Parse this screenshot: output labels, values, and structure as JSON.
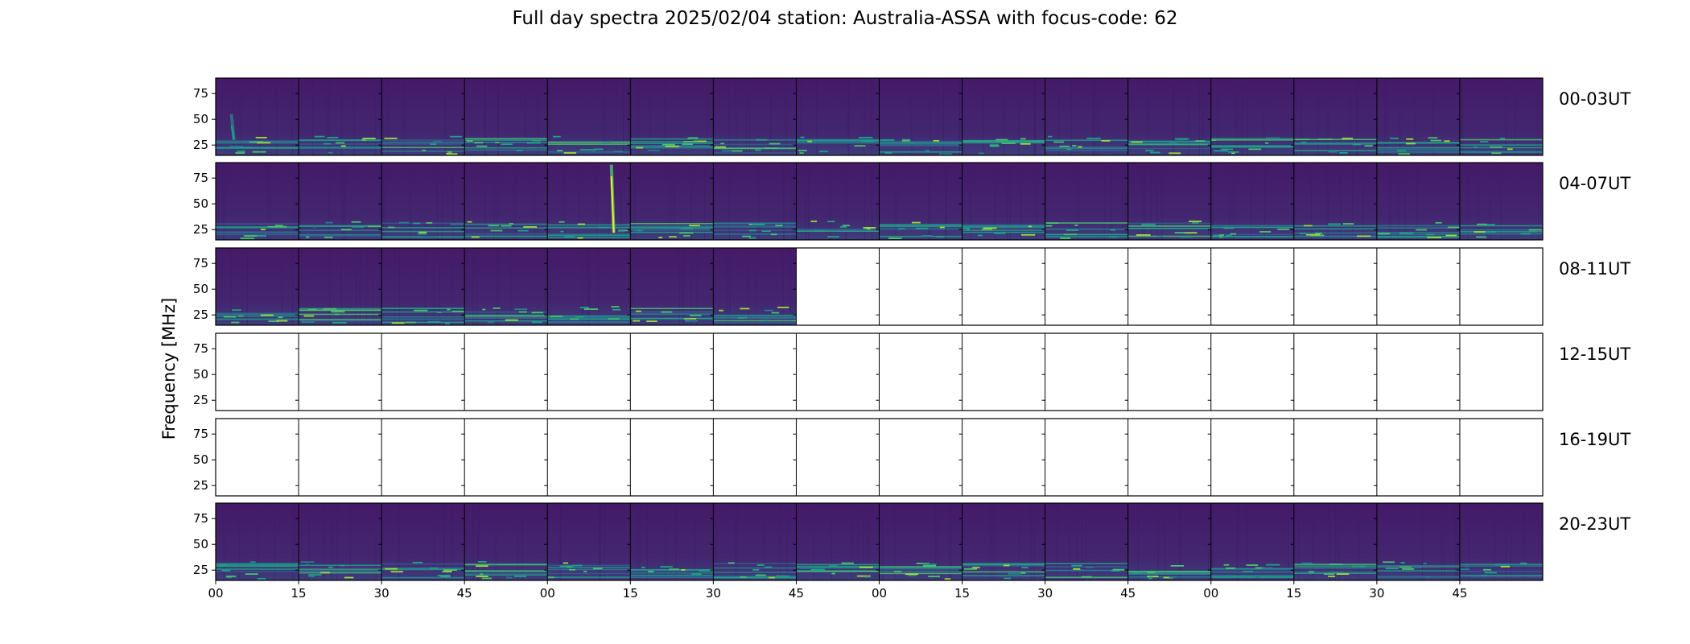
{
  "chart_data": {
    "type": "heatmap",
    "title": "Full day spectra 2025/02/04 station: Australia-ASSA with focus-code: 62",
    "ylabel": "Frequency [MHz]",
    "xlabel": "",
    "ylim": [
      15,
      90
    ],
    "yticks": [
      25,
      50,
      75
    ],
    "xtick_labels": [
      "00",
      "15",
      "30",
      "45",
      "00",
      "15",
      "30",
      "45",
      "00",
      "15",
      "30",
      "45",
      "00",
      "15",
      "30",
      "45"
    ],
    "panels_per_row": 16,
    "colormap": [
      "#440154",
      "#46327e",
      "#365c8d",
      "#277f8e",
      "#1fa187",
      "#4ac16d",
      "#a0da39",
      "#fde725"
    ],
    "rows": [
      {
        "label": "00-03UT",
        "data_panels": 16,
        "bursts": [
          {
            "panel": 0,
            "pos": 0.22,
            "fmin": 30,
            "fmax": 55,
            "strength": 0.55
          }
        ]
      },
      {
        "label": "04-07UT",
        "data_panels": 16,
        "bursts": [
          {
            "panel": 4,
            "pos": 0.8,
            "fmin": 22,
            "fmax": 88,
            "strength": 1.0
          }
        ]
      },
      {
        "label": "08-11UT",
        "data_panels": 7,
        "bursts": []
      },
      {
        "label": "12-15UT",
        "data_panels": 0,
        "bursts": []
      },
      {
        "label": "16-19UT",
        "data_panels": 0,
        "bursts": []
      },
      {
        "label": "20-23UT",
        "data_panels": 16,
        "bursts": []
      }
    ]
  }
}
